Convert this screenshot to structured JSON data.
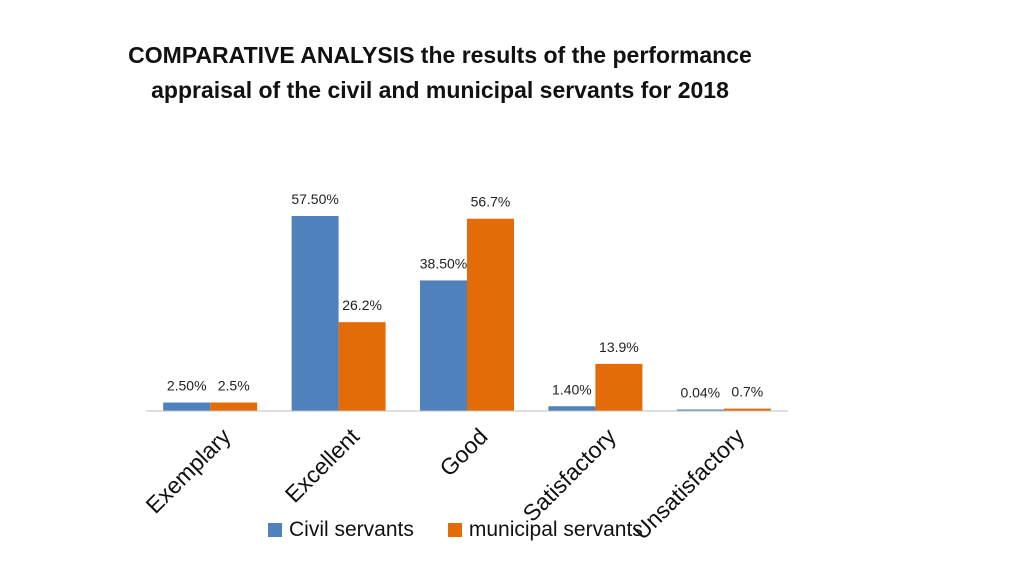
{
  "chart_data": {
    "type": "bar",
    "title": "COMPARATIVE ANALYSIS the results of the performance\nappraisal of the civil and municipal servants for 2018",
    "categories": [
      "Exemplary",
      "Excellent",
      "Good",
      "Satisfactory",
      "Unsatisfactory"
    ],
    "series": [
      {
        "name": "Civil servants",
        "color": "#4F81BD",
        "values": [
          2.5,
          57.5,
          38.5,
          1.4,
          0.04
        ],
        "labels": [
          "2.50%",
          "57.50%",
          "38.50%",
          "1.40%",
          "0.04%"
        ]
      },
      {
        "name": "municipal servants",
        "color": "#E36C09",
        "values": [
          2.5,
          26.2,
          56.7,
          13.9,
          0.7
        ],
        "labels": [
          "2.5%",
          "26.2%",
          "56.7%",
          "13.9%",
          "0.7%"
        ]
      }
    ],
    "ylim": [
      0,
      60
    ],
    "grid": false,
    "legend_position": "bottom"
  }
}
